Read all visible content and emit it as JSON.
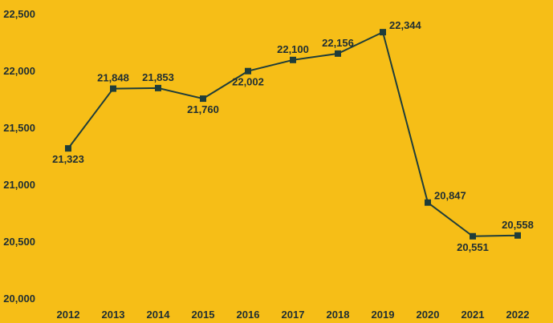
{
  "chart_data": {
    "type": "line",
    "title": "",
    "xlabel": "",
    "ylabel": "",
    "categories": [
      "2012",
      "2013",
      "2014",
      "2015",
      "2016",
      "2017",
      "2018",
      "2019",
      "2020",
      "2021",
      "2022"
    ],
    "values": [
      21323,
      21848,
      21853,
      21760,
      22002,
      22100,
      22156,
      22344,
      20847,
      20551,
      20558
    ],
    "data_labels": [
      "21,323",
      "21,848",
      "21,853",
      "21,760",
      "22,002",
      "22,100",
      "22,156",
      "22,344",
      "20,847",
      "20,551",
      "20,558"
    ],
    "y_tick_labels": [
      "20,000",
      "20,500",
      "21,000",
      "21,500",
      "22,000",
      "22,500"
    ],
    "ylim": [
      20000,
      22500
    ],
    "y_ticks": [
      20000,
      20500,
      21000,
      21500,
      22000,
      22500
    ],
    "grid": false,
    "legend": "none",
    "colors": {
      "background": "#F6BE17",
      "line": "#1f3d3a",
      "text": "#1f2e33"
    }
  }
}
